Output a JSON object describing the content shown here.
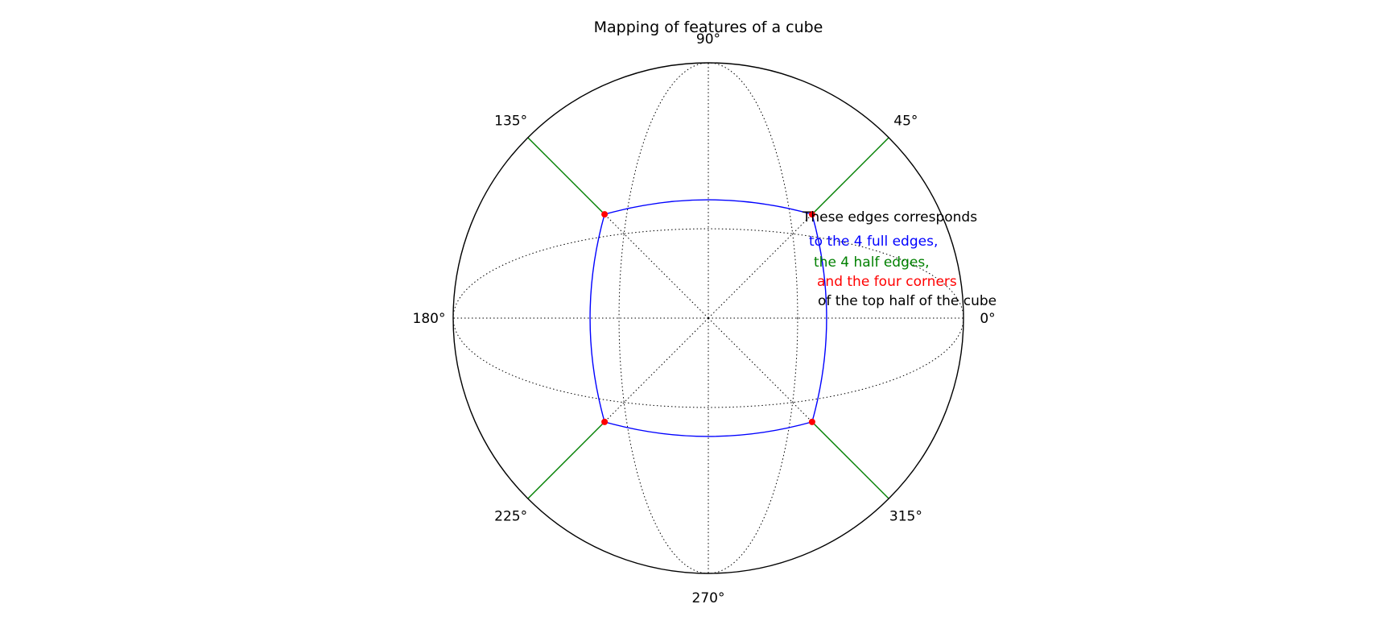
{
  "chart_data": {
    "type": "polar",
    "title": "Mapping of features of a cube",
    "angle_tick_labels": [
      "0°",
      "45°",
      "90°",
      "135°",
      "180°",
      "225°",
      "270°",
      "315°"
    ],
    "angle_ticks_deg": [
      0,
      45,
      90,
      135,
      180,
      225,
      270,
      315
    ],
    "radial_grid": "dotted meridian curves",
    "grid": true,
    "series": [
      {
        "kind": "edges",
        "color": "#0000ff",
        "style": "solid curve",
        "description_value": "4 full edges"
      },
      {
        "kind": "half-edges",
        "color": "#008000",
        "style": "solid radial segments",
        "angles_deg": [
          45,
          135,
          225,
          315
        ]
      },
      {
        "kind": "corners",
        "color": "#ff0000",
        "marker": "dot",
        "angles_deg": [
          45,
          135,
          225,
          315
        ]
      }
    ],
    "annotation_lines": [
      {
        "text": "These edges corresponds",
        "color": "#000000"
      },
      {
        "text": "to the 4 full edges,",
        "color": "#0000ff"
      },
      {
        "text": "the 4 half edges,",
        "color": "#008000"
      },
      {
        "text": "and the four corners",
        "color": "#ff0000"
      },
      {
        "text": "of the top half of the cube",
        "color": "#000000"
      }
    ]
  }
}
